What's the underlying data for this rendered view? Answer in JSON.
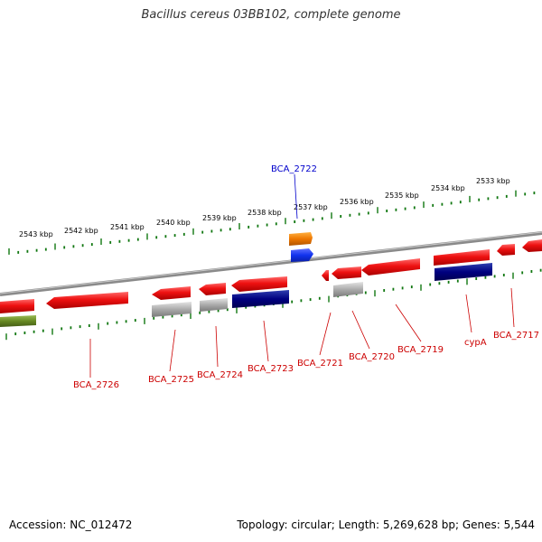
{
  "title": "Bacillus cereus 03BB102, complete genome",
  "footer": {
    "accession": "Accession: NC_012472",
    "summary": "Topology: circular; Length: 5,269,628 bp; Genes: 5,544"
  },
  "colors": {
    "forward_gene": "#ee1111",
    "reverse_gene": "#ee1111",
    "trna": "#aaaaaa",
    "rrna": "#000080",
    "other_orange": "#ee7700",
    "other_blue": "#1133ee",
    "olive": "#668822",
    "backbone": "#888888",
    "ticks": "#117711",
    "label_red": "#cc0000",
    "label_blue": "#0000cc"
  },
  "scale": {
    "unit": "kbp",
    "labels": [
      "2543 kbp",
      "2542 kbp",
      "2541 kbp",
      "2540 kbp",
      "2539 kbp",
      "2538 kbp",
      "2537 kbp",
      "2536 kbp",
      "2535 kbp",
      "2534 kbp",
      "2533 kbp"
    ]
  },
  "gene_labels": [
    {
      "text": "BCA_2722",
      "color": "label_blue"
    },
    {
      "text": "BCA_2726",
      "color": "label_red"
    },
    {
      "text": "BCA_2725",
      "color": "label_red"
    },
    {
      "text": "BCA_2724",
      "color": "label_red"
    },
    {
      "text": "BCA_2723",
      "color": "label_red"
    },
    {
      "text": "BCA_2721",
      "color": "label_red"
    },
    {
      "text": "BCA_2720",
      "color": "label_red"
    },
    {
      "text": "BCA_2719",
      "color": "label_red"
    },
    {
      "text": "cypA",
      "color": "label_red"
    },
    {
      "text": "BCA_2717",
      "color": "label_red"
    }
  ]
}
